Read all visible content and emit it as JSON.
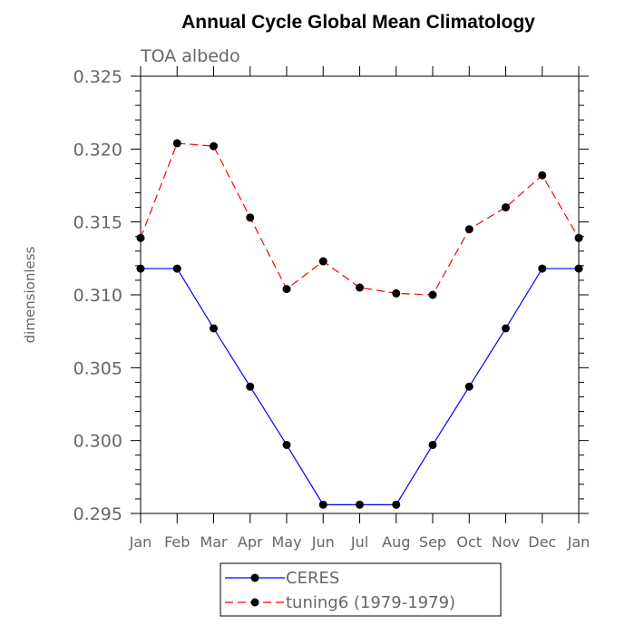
{
  "chart_data": {
    "type": "line",
    "title": "Annual Cycle Global Mean Climatology",
    "subtitle": "TOA albedo",
    "xlabel": "",
    "ylabel": "dimensionless",
    "categories": [
      "Jan",
      "Feb",
      "Mar",
      "Apr",
      "May",
      "Jun",
      "Jul",
      "Aug",
      "Sep",
      "Oct",
      "Nov",
      "Dec",
      "Jan"
    ],
    "ylim": [
      0.295,
      0.325
    ],
    "yticks": [
      "0.295",
      "0.300",
      "0.305",
      "0.310",
      "0.315",
      "0.320",
      "0.325"
    ],
    "grid": false,
    "legend_position": "bottom-center",
    "series": [
      {
        "name": "CERES",
        "color": "#0000ff",
        "line_style": "solid",
        "marker": "filled-circle",
        "values": [
          0.3118,
          0.3118,
          0.3077,
          0.3037,
          0.2997,
          0.2956,
          0.2956,
          0.2956,
          0.2997,
          0.3037,
          0.3077,
          0.3118,
          0.3118
        ]
      },
      {
        "name": "tuning6 (1979-1979)",
        "color": "#ff0000",
        "line_style": "dashed",
        "marker": "filled-circle",
        "values": [
          0.3139,
          0.3204,
          0.3202,
          0.3153,
          0.3104,
          0.3123,
          0.3105,
          0.3101,
          0.31,
          0.3145,
          0.316,
          0.3182,
          0.3139
        ]
      }
    ]
  }
}
